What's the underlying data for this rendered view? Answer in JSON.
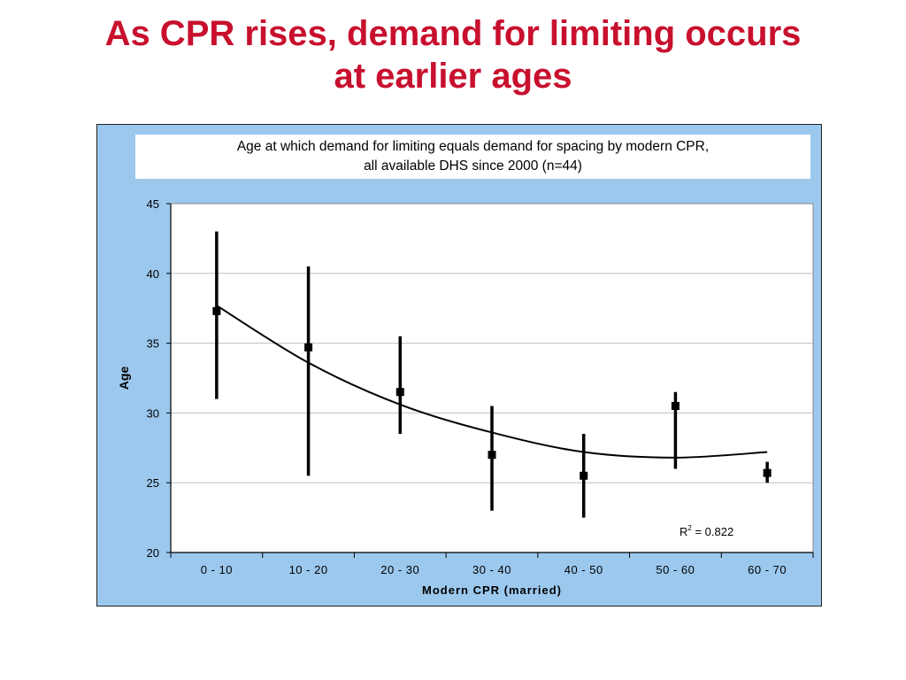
{
  "slide": {
    "title_line1": "As CPR rises, demand for limiting occurs",
    "title_line2": "at earlier ages",
    "title_color": "#c8102e"
  },
  "colors": {
    "frame_background": "#9cc8ee",
    "plot_background": "#ffffff",
    "marks": "#000000",
    "grid": "#c0c0c0"
  },
  "chart_data": {
    "type": "scatter",
    "title_line1": "Age at which demand for limiting equals demand for spacing by modern CPR,",
    "title_line2": "all available DHS since 2000 (n=44)",
    "xlabel": "Modern CPR (married)",
    "ylabel": "Age",
    "categories": [
      "0 - 10",
      "10 - 20",
      "20 - 30",
      "30 - 40",
      "40 - 50",
      "50 - 60",
      "60 - 70"
    ],
    "ylim": [
      20,
      45
    ],
    "yticks": [
      20,
      25,
      30,
      35,
      40,
      45
    ],
    "grid": true,
    "series": [
      {
        "values": [
          37.3,
          34.7,
          31.5,
          27.0,
          25.5,
          30.5,
          25.7
        ],
        "error_high": [
          43.0,
          40.5,
          35.5,
          30.5,
          28.5,
          31.5,
          26.5
        ],
        "error_low": [
          31.0,
          25.5,
          28.5,
          23.0,
          22.5,
          26.0,
          25.0
        ]
      }
    ],
    "trendline": {
      "type": "polynomial",
      "values": [
        37.7,
        33.6,
        30.6,
        28.6,
        27.2,
        26.8,
        27.2
      ]
    },
    "r_squared_label": "R",
    "r_squared_exp": "2",
    "r_squared_value": " = 0.822"
  }
}
